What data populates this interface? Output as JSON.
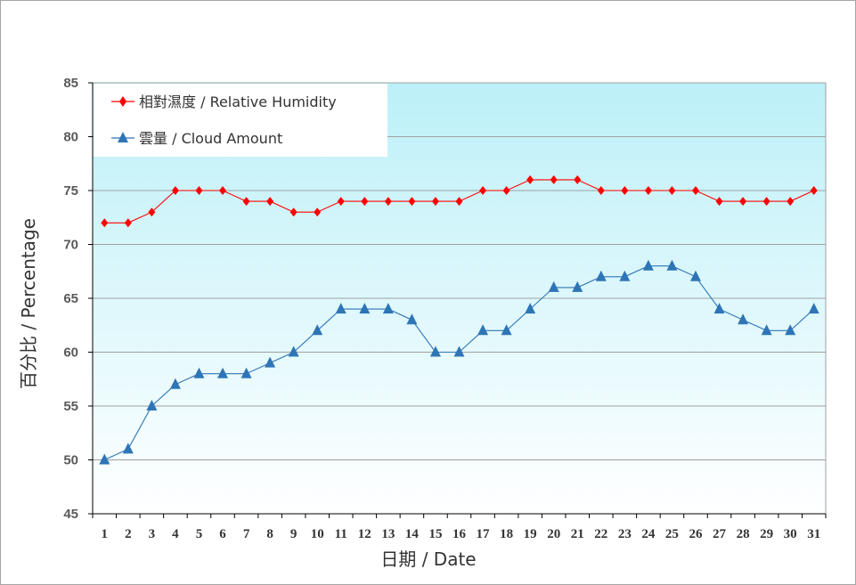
{
  "chart_data": {
    "type": "line",
    "title": "",
    "xlabel": "日期 / Date",
    "ylabel": "百分比 / Percentage",
    "ylim": [
      45,
      85
    ],
    "ytick_step": 5,
    "yticks": [
      "45",
      "50",
      "55",
      "60",
      "65",
      "70",
      "75",
      "80",
      "85"
    ],
    "categories": [
      "1",
      "2",
      "3",
      "4",
      "5",
      "6",
      "7",
      "8",
      "9",
      "10",
      "11",
      "12",
      "13",
      "14",
      "15",
      "16",
      "17",
      "18",
      "19",
      "20",
      "21",
      "22",
      "23",
      "24",
      "25",
      "26",
      "27",
      "28",
      "29",
      "30",
      "31"
    ],
    "grid": true,
    "legend_position": "top-left",
    "background": "gradient light cyan to white",
    "series": [
      {
        "name": "相對濕度 / Relative Humidity",
        "color": "#ff0000",
        "marker": "diamond",
        "values": [
          72,
          72,
          73,
          75,
          75,
          75,
          74,
          74,
          73,
          73,
          74,
          74,
          74,
          74,
          74,
          74,
          75,
          75,
          76,
          76,
          76,
          75,
          75,
          75,
          75,
          75,
          74,
          74,
          74,
          74,
          75
        ]
      },
      {
        "name": "雲量 / Cloud Amount",
        "color": "#2e75b6",
        "marker": "triangle",
        "values": [
          50,
          51,
          55,
          57,
          58,
          58,
          58,
          59,
          60,
          62,
          64,
          64,
          64,
          63,
          60,
          60,
          62,
          62,
          64,
          66,
          66,
          67,
          67,
          68,
          68,
          67,
          64,
          63,
          62,
          62,
          64
        ]
      }
    ]
  }
}
